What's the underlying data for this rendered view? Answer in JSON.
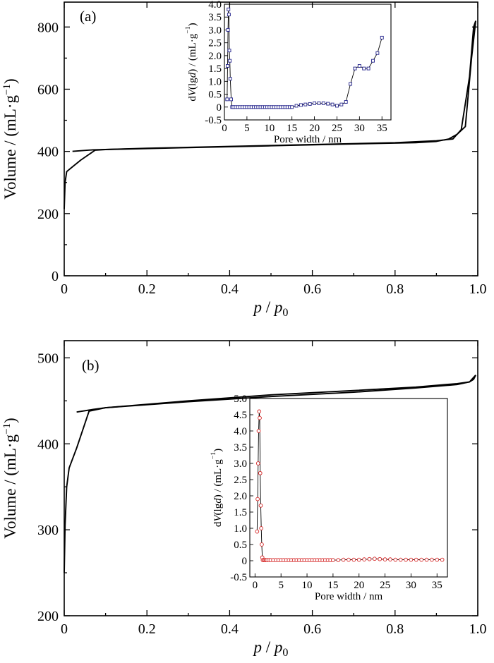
{
  "chart_data": [
    {
      "type": "line",
      "panel_label": "(a)",
      "xlabel": "p / p0",
      "ylabel": "Volume / (mL·g⁻¹)",
      "xlim": [
        0,
        1.0
      ],
      "ylim": [
        0,
        880
      ],
      "xticks": [
        0,
        0.2,
        0.4,
        0.6,
        0.8,
        1.0
      ],
      "xtick_labels": [
        "0",
        "0.2",
        "0.4",
        "0.6",
        "0.8",
        "1.0"
      ],
      "yticks": [
        0,
        200,
        400,
        600,
        800
      ],
      "ytick_labels": [
        "0",
        "200",
        "400",
        "600",
        "800"
      ],
      "series": [
        {
          "role": "adsorption",
          "x": [
            0.0,
            0.002,
            0.006,
            0.015,
            0.04,
            0.075,
            0.1,
            0.3,
            0.5,
            0.7,
            0.85,
            0.9,
            0.93,
            0.95,
            0.97,
            0.985,
            0.995
          ],
          "y": [
            215,
            300,
            335,
            345,
            372,
            404,
            406,
            412,
            418,
            424,
            428,
            432,
            440,
            455,
            480,
            700,
            820
          ]
        },
        {
          "role": "desorption",
          "x": [
            0.995,
            0.99,
            0.98,
            0.96,
            0.94,
            0.9,
            0.8,
            0.6,
            0.4,
            0.2,
            0.07,
            0.02
          ],
          "y": [
            820,
            800,
            640,
            470,
            440,
            434,
            428,
            422,
            416,
            410,
            405,
            400
          ]
        }
      ],
      "inset": {
        "type": "line",
        "xlabel": "Pore width / nm",
        "ylabel": "dV(lgd) / (mL·g⁻¹)",
        "xlim": [
          0,
          37
        ],
        "ylim": [
          -0.5,
          4.0
        ],
        "xticks": [
          0,
          5,
          10,
          15,
          20,
          25,
          30,
          35
        ],
        "xtick_labels": [
          "0",
          "5",
          "10",
          "15",
          "20",
          "25",
          "30",
          "35"
        ],
        "yticks": [
          -0.5,
          0,
          0.5,
          1.0,
          1.5,
          2.0,
          2.5,
          3.0,
          3.5,
          4.0
        ],
        "ytick_labels": [
          "-0.5",
          "0",
          "0.5",
          "1.0",
          "1.5",
          "2.0",
          "2.5",
          "3.0",
          "3.5",
          "4.0"
        ],
        "marker": "square",
        "marker_color": "#23238c",
        "x": [
          0.6,
          0.7,
          0.8,
          0.9,
          1.0,
          1.1,
          1.2,
          1.3,
          1.5,
          1.7,
          2,
          2.5,
          3,
          3.5,
          4,
          4.5,
          5,
          5.5,
          6,
          6.5,
          7,
          7.5,
          8,
          8.5,
          9,
          9.5,
          10,
          10.5,
          11,
          11.5,
          12,
          12.5,
          13,
          13.5,
          14,
          14.5,
          15,
          16,
          17,
          18,
          19,
          20,
          21,
          22,
          23,
          24,
          25,
          26,
          27,
          28,
          29,
          30,
          31,
          32,
          33,
          34,
          35
        ],
        "y": [
          0.3,
          1.6,
          3.0,
          3.8,
          3.6,
          2.2,
          1.8,
          1.1,
          0.3,
          0.0,
          0.0,
          0.0,
          0.0,
          0.0,
          0.0,
          0.0,
          0.0,
          0.0,
          0.0,
          0.0,
          0.0,
          0.0,
          0.0,
          0.0,
          0.0,
          0.0,
          0.0,
          0.0,
          0.0,
          0.0,
          0.0,
          0.0,
          0.0,
          0.0,
          0.0,
          0.0,
          0.0,
          0.05,
          0.08,
          0.1,
          0.12,
          0.15,
          0.15,
          0.15,
          0.13,
          0.1,
          0.05,
          0.1,
          0.2,
          0.9,
          1.5,
          1.6,
          1.5,
          1.5,
          1.8,
          2.1,
          2.7
        ]
      }
    },
    {
      "type": "line",
      "panel_label": "(b)",
      "xlabel": "p / p0",
      "ylabel": "Volume / (mL·g⁻¹)",
      "xlim": [
        0,
        1.0
      ],
      "ylim": [
        200,
        520
      ],
      "xticks": [
        0,
        0.2,
        0.4,
        0.6,
        0.8,
        1.0
      ],
      "xtick_labels": [
        "0",
        "0.2",
        "0.4",
        "0.6",
        "0.8",
        "1.0"
      ],
      "yticks": [
        200,
        300,
        400,
        500
      ],
      "ytick_labels": [
        "200",
        "300",
        "400",
        "500"
      ],
      "series": [
        {
          "role": "adsorption",
          "x": [
            0.0,
            0.002,
            0.006,
            0.012,
            0.03,
            0.06,
            0.1,
            0.3,
            0.5,
            0.7,
            0.85,
            0.95,
            0.98,
            0.99,
            0.995
          ],
          "y": [
            250,
            305,
            350,
            372,
            395,
            438,
            442,
            449,
            455,
            460,
            465,
            469,
            472,
            475,
            480
          ]
        },
        {
          "role": "desorption",
          "x": [
            0.995,
            0.98,
            0.95,
            0.85,
            0.7,
            0.5,
            0.3,
            0.1,
            0.07,
            0.03
          ],
          "y": [
            480,
            472,
            470,
            466,
            462,
            457,
            450,
            442,
            440,
            437
          ]
        }
      ],
      "inset": {
        "type": "line",
        "xlabel": "Pore width / nm",
        "ylabel": "dV(lgd) / (mL·g⁻¹)",
        "xlim": [
          -1,
          37
        ],
        "ylim": [
          -0.5,
          5.0
        ],
        "xticks": [
          0,
          5,
          10,
          15,
          20,
          25,
          30,
          35
        ],
        "xtick_labels": [
          "0",
          "5",
          "10",
          "15",
          "20",
          "25",
          "30",
          "35"
        ],
        "yticks": [
          -0.5,
          0,
          0.5,
          1.0,
          1.5,
          2.0,
          2.5,
          3.0,
          3.5,
          4.0,
          4.5,
          5.0
        ],
        "ytick_labels": [
          "-0.5",
          "0",
          "0.5",
          "1.0",
          "1.5",
          "2.0",
          "2.5",
          "3.0",
          "3.5",
          "4.0",
          "4.5",
          "5.0"
        ],
        "marker": "circle",
        "marker_color": "#d42020",
        "x": [
          0.4,
          0.5,
          0.6,
          0.7,
          0.8,
          0.9,
          1.0,
          1.1,
          1.2,
          1.3,
          1.4,
          1.5,
          1.7,
          1.9,
          2.1,
          2.3,
          2.6,
          3,
          3.5,
          4,
          4.5,
          5,
          5.5,
          6,
          6.5,
          7,
          7.5,
          8,
          8.5,
          9,
          9.5,
          10,
          10.5,
          11,
          11.5,
          12,
          12.5,
          13,
          13.5,
          14,
          14.5,
          15,
          16,
          17,
          18,
          19,
          20,
          21,
          22,
          23,
          24,
          25,
          26,
          27,
          28,
          29,
          30,
          31,
          32,
          33,
          34,
          35,
          36
        ],
        "y": [
          0.9,
          1.9,
          3.0,
          4.0,
          4.6,
          4.4,
          2.7,
          1.7,
          1.0,
          0.5,
          0.1,
          0.02,
          0.02,
          0.02,
          0.02,
          0.02,
          0.02,
          0.02,
          0.02,
          0.02,
          0.02,
          0.02,
          0.02,
          0.02,
          0.02,
          0.02,
          0.02,
          0.02,
          0.02,
          0.02,
          0.02,
          0.02,
          0.02,
          0.02,
          0.02,
          0.02,
          0.02,
          0.02,
          0.02,
          0.02,
          0.02,
          0.02,
          0.02,
          0.03,
          0.03,
          0.03,
          0.03,
          0.04,
          0.05,
          0.06,
          0.05,
          0.04,
          0.04,
          0.03,
          0.03,
          0.03,
          0.03,
          0.03,
          0.03,
          0.03,
          0.03,
          0.03,
          0.03
        ]
      }
    }
  ]
}
